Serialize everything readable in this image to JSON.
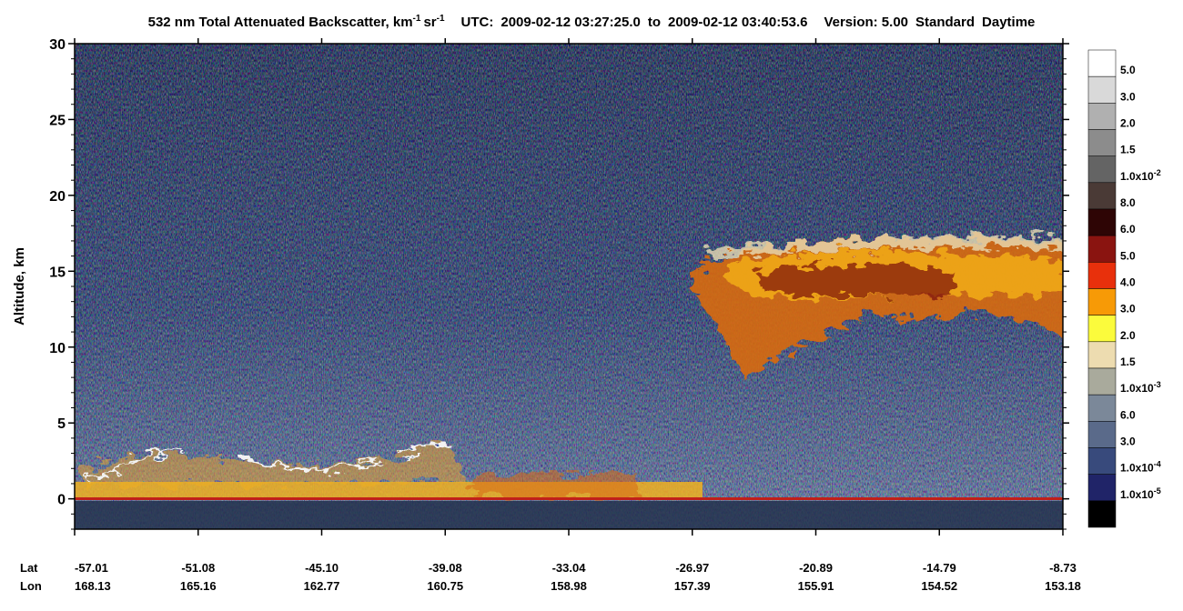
{
  "chart_data": {
    "type": "curtain",
    "title": {
      "main": "532 nm Total Attenuated Backscatter, km",
      "exp1": "-1",
      "unit2": "sr",
      "exp2": "-1",
      "utc_label": "UTC:",
      "start": "2009-02-12 03:27:25.0",
      "to": "to",
      "end": "2009-02-12 03:40:53.6",
      "version": "Version: 5.00",
      "product": "Standard",
      "mode": "Daytime"
    },
    "y_label": "Altitude, km",
    "ylim": [
      -2,
      30
    ],
    "yticks": [
      0,
      5,
      10,
      15,
      20,
      25,
      30
    ],
    "lat_label": "Lat",
    "lon_label": "Lon",
    "lat": [
      -57.01,
      -51.08,
      {
        "value": -45.1,
        "label": "-45.10"
      },
      -39.08,
      -33.04,
      -26.97,
      -20.89,
      -14.79,
      -8.73
    ],
    "lon": [
      168.13,
      165.16,
      162.77,
      160.75,
      158.98,
      157.39,
      155.91,
      154.52,
      153.18
    ],
    "colorbar": {
      "colors": [
        "#ffffff",
        "#d9d9d9",
        "#b0b0b0",
        "#8c8c8c",
        "#646464",
        "#4a3a36",
        "#2e0505",
        "#8a1410",
        "#e8300c",
        "#f79a06",
        "#fbfb3c",
        "#eddcb0",
        "#a9aa9c",
        "#7b8899",
        "#5a6a8a",
        "#384a7c",
        "#202468",
        "#000000"
      ],
      "labels": [
        {
          "base": "5.0"
        },
        {
          "base": "3.0"
        },
        {
          "base": "2.0"
        },
        {
          "base": "1.5"
        },
        {
          "base": "1.0x10",
          "exp": "-2"
        },
        {
          "base": "8.0"
        },
        {
          "base": "6.0"
        },
        {
          "base": "5.0"
        },
        {
          "base": "4.0"
        },
        {
          "base": "3.0"
        },
        {
          "base": "2.0"
        },
        {
          "base": "1.5"
        },
        {
          "base": "1.0x10",
          "exp": "-3"
        },
        {
          "base": "6.0"
        },
        {
          "base": "3.0"
        },
        {
          "base": "1.0x10",
          "exp": "-4"
        },
        {
          "base": "1.0x10",
          "exp": "-5"
        }
      ]
    }
  }
}
